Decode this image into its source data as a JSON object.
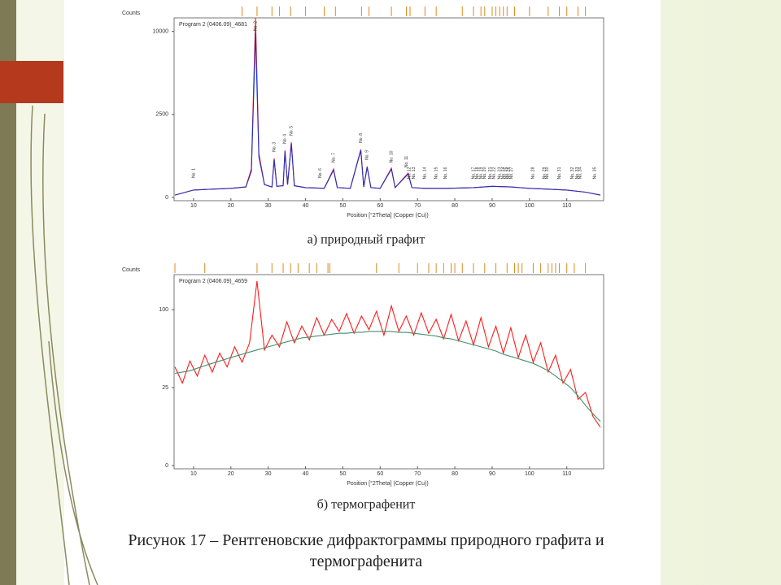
{
  "chart_data": [
    {
      "type": "line",
      "header": "Program 2 (0406.09)_4681",
      "ylabel": "Counts",
      "xlabel": "Position [°2Theta] (Copper (Cu))",
      "subtitle": "а) природный графит",
      "x": [
        5,
        10,
        15,
        20,
        24,
        25.5,
        26.6,
        27.5,
        29,
        31,
        31.6,
        32.3,
        34,
        34.5,
        35.2,
        36.2,
        37,
        40,
        45,
        47.5,
        48.5,
        52,
        54.8,
        55.6,
        56.5,
        57.5,
        60,
        63,
        64,
        67.5,
        68.5,
        72,
        78,
        85,
        90,
        95,
        100,
        105,
        110,
        115,
        119
      ],
      "series": [
        {
          "color": "#ff2020",
          "values": [
            2,
            20,
            25,
            30,
            40,
            300,
            11700,
            700,
            60,
            40,
            554,
            45,
            50,
            808,
            60,
            1111,
            50,
            35,
            30,
            294,
            35,
            30,
            836,
            40,
            347,
            35,
            30,
            311,
            35,
            216,
            35,
            30,
            30,
            35,
            45,
            40,
            30,
            25,
            20,
            10,
            2
          ]
        },
        {
          "color": "#2030c0",
          "values": [
            2,
            20,
            25,
            30,
            40,
            250,
            9800,
            600,
            60,
            40,
            520,
            45,
            50,
            760,
            60,
            1050,
            50,
            35,
            30,
            270,
            35,
            30,
            800,
            40,
            330,
            35,
            30,
            290,
            35,
            200,
            35,
            30,
            30,
            35,
            45,
            40,
            30,
            25,
            20,
            10,
            2
          ]
        }
      ],
      "xlim": [
        5,
        119
      ],
      "xticks": [
        10,
        20,
        30,
        40,
        50,
        60,
        70,
        80,
        90,
        100,
        110
      ],
      "ylim": [
        0,
        11700
      ],
      "yticks": [
        0,
        2500,
        10000
      ],
      "yscale": "sqrt",
      "reference_x": [
        23,
        27,
        31,
        33,
        36,
        40,
        45,
        48,
        55,
        57,
        63,
        67,
        68,
        72,
        75,
        82,
        85,
        87,
        88,
        90,
        91,
        92,
        93,
        94,
        96,
        100,
        105,
        108,
        110,
        113,
        115
      ],
      "annotations": [
        {
          "x": 10,
          "label": "No. 1"
        },
        {
          "x": 26.6,
          "label": "No. 2"
        },
        {
          "x": 31.6,
          "label": "No. 3"
        },
        {
          "x": 34.5,
          "label": "No. 4"
        },
        {
          "x": 36.2,
          "label": "No. 5"
        },
        {
          "x": 44,
          "label": "No. 6"
        },
        {
          "x": 47.5,
          "label": "No. 7"
        },
        {
          "x": 54.8,
          "label": "No. 8"
        },
        {
          "x": 56.5,
          "label": "No. 9"
        },
        {
          "x": 63,
          "label": "No. 10"
        },
        {
          "x": 67,
          "label": "No. 11"
        },
        {
          "x": 67.8,
          "label": "No. 12"
        },
        {
          "x": 69,
          "label": "No. 13"
        },
        {
          "x": 72,
          "label": "No. 14"
        },
        {
          "x": 75,
          "label": "No. 15"
        },
        {
          "x": 77.5,
          "label": "No. 16"
        },
        {
          "x": 85,
          "label": "No. 17"
        },
        {
          "x": 86,
          "label": "No. 18"
        },
        {
          "x": 87,
          "label": "No. 19"
        },
        {
          "x": 88,
          "label": "No. 20"
        },
        {
          "x": 89.5,
          "label": "No. 21"
        },
        {
          "x": 90.5,
          "label": "No. 22"
        },
        {
          "x": 92,
          "label": "No. 23"
        },
        {
          "x": 93,
          "label": "No. 24"
        },
        {
          "x": 93.7,
          "label": "No. 25"
        },
        {
          "x": 94.4,
          "label": "No. 26"
        },
        {
          "x": 95.2,
          "label": "No. 27"
        },
        {
          "x": 101,
          "label": "No. 28"
        },
        {
          "x": 104,
          "label": "No. 29"
        },
        {
          "x": 104.8,
          "label": "No. 30"
        },
        {
          "x": 108,
          "label": "No. 31"
        },
        {
          "x": 111.5,
          "label": "No. 32"
        },
        {
          "x": 112.8,
          "label": "No. 33"
        },
        {
          "x": 113.6,
          "label": "No. 34"
        },
        {
          "x": 117.5,
          "label": "No. 35"
        }
      ]
    },
    {
      "type": "line",
      "header": "Program 2 (0406.09)_4659",
      "ylabel": "Counts",
      "xlabel": "Position [°2Theta] (Copper (Cu))",
      "subtitle": "б) термографенит",
      "x": [
        5,
        7,
        9,
        11,
        13,
        15,
        17,
        19,
        21,
        23,
        25,
        27,
        29,
        31,
        33,
        35,
        37,
        39,
        41,
        43,
        45,
        47,
        49,
        51,
        53,
        55,
        57,
        59,
        61,
        63,
        65,
        67,
        69,
        71,
        73,
        75,
        77,
        79,
        81,
        83,
        85,
        87,
        89,
        91,
        93,
        95,
        97,
        99,
        101,
        103,
        105,
        107,
        109,
        111,
        113,
        115,
        117,
        119
      ],
      "series": [
        {
          "color": "#ff1a1a",
          "values": [
            40,
            28,
            45,
            33,
            50,
            36,
            52,
            40,
            58,
            44,
            62,
            140,
            55,
            70,
            58,
            85,
            62,
            80,
            65,
            90,
            70,
            88,
            74,
            95,
            72,
            92,
            76,
            98,
            70,
            105,
            74,
            92,
            70,
            96,
            72,
            88,
            66,
            94,
            64,
            86,
            60,
            90,
            58,
            80,
            52,
            78,
            48,
            70,
            44,
            62,
            36,
            50,
            28,
            38,
            18,
            22,
            10,
            6
          ]
        },
        {
          "color": "#3f8f6a",
          "values": [
            35,
            36,
            37,
            39,
            41,
            43,
            45,
            47,
            49,
            51,
            53,
            55,
            57,
            59,
            61,
            63,
            65,
            67,
            68,
            69,
            70,
            71,
            72,
            72,
            73,
            73,
            74,
            74,
            74,
            74,
            73,
            73,
            72,
            71,
            70,
            69,
            67,
            66,
            64,
            62,
            60,
            58,
            56,
            54,
            51,
            49,
            47,
            45,
            43,
            40,
            37,
            33,
            29,
            25,
            20,
            15,
            11,
            8
          ]
        }
      ],
      "xlim": [
        5,
        119
      ],
      "xticks": [
        10,
        20,
        30,
        40,
        50,
        60,
        70,
        80,
        90,
        100,
        110
      ],
      "ylim": [
        0,
        150
      ],
      "yticks": [
        0,
        25,
        100
      ],
      "yscale": "sqrt",
      "reference_x": [
        5,
        13,
        27,
        31,
        34,
        36,
        38,
        41,
        43,
        46,
        46.5,
        59,
        65,
        70,
        73,
        75,
        77,
        79,
        80,
        82,
        85,
        88,
        91,
        94,
        96,
        97,
        98,
        101,
        103,
        105,
        106,
        107,
        108,
        110,
        112,
        115
      ]
    }
  ],
  "caption": "Рисунок 17 – Рентгеновские дифрактограммы природного графита и термографенита"
}
